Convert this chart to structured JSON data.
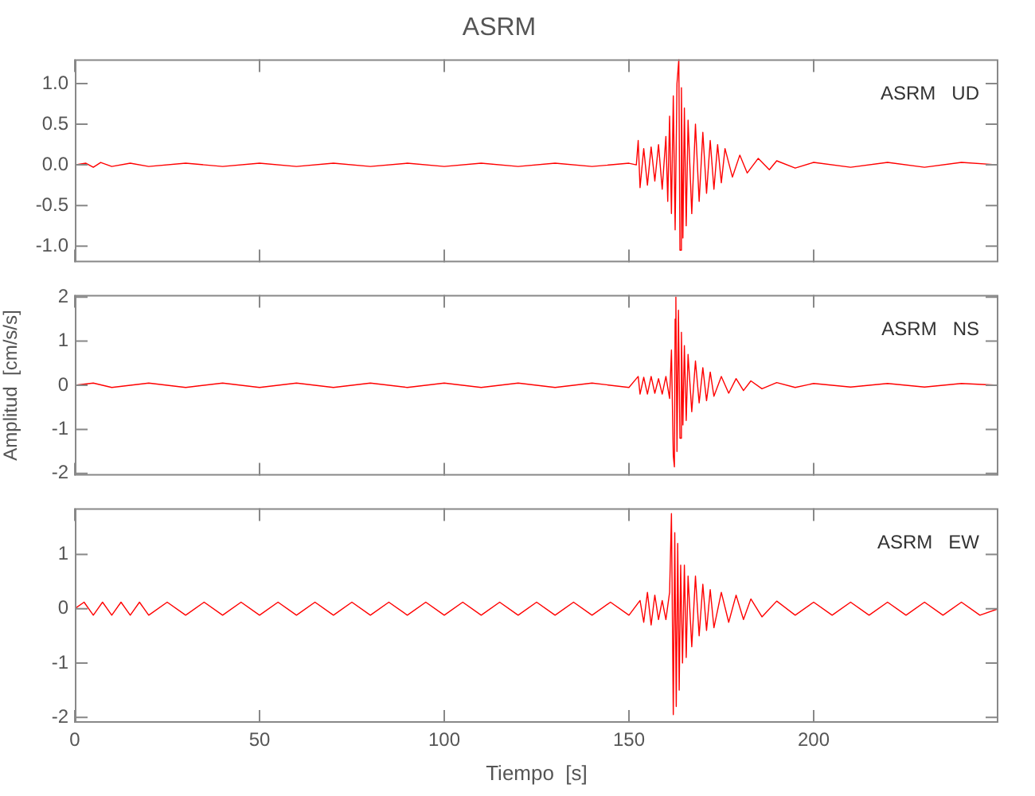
{
  "chart_data": [
    {
      "type": "line",
      "title": "ASRM",
      "annotations": [
        "ASRM   UD"
      ],
      "color": "#ff0000",
      "marker": "none",
      "tick_labels": "y",
      "xlim": [
        0,
        250
      ],
      "xticks": [
        0,
        50,
        100,
        150,
        200
      ],
      "ylim": [
        -1.2,
        1.3
      ],
      "yticks": [
        {
          "value": -1,
          "label": "-1.0"
        },
        {
          "value": -0.5,
          "label": "-0.5"
        },
        {
          "value": 0,
          "label": "0.0"
        },
        {
          "value": 0.5,
          "label": "0.5"
        },
        {
          "value": 1,
          "label": "1.0"
        }
      ],
      "x": [
        0,
        3,
        5,
        7,
        10,
        15,
        20,
        30,
        40,
        50,
        60,
        70,
        80,
        90,
        100,
        110,
        120,
        130,
        140,
        150,
        152,
        152.5,
        153,
        154,
        155,
        156,
        157,
        158,
        159,
        160,
        160.5,
        161,
        161.5,
        162,
        162.5,
        163,
        163.5,
        163.8,
        164.2,
        164.6,
        165,
        165.5,
        166,
        167,
        168,
        169,
        170,
        171,
        172,
        173,
        174,
        175,
        176,
        178,
        180,
        182,
        185,
        188,
        190,
        195,
        200,
        210,
        220,
        230,
        240,
        250
      ],
      "values": [
        0,
        0.02,
        -0.03,
        0.03,
        -0.02,
        0.02,
        -0.02,
        0.02,
        -0.02,
        0.02,
        -0.02,
        0.02,
        -0.02,
        0.02,
        -0.02,
        0.02,
        -0.02,
        0.02,
        -0.02,
        0.02,
        0,
        0.3,
        -0.28,
        0.2,
        -0.25,
        0.22,
        -0.2,
        0.25,
        -0.3,
        0.35,
        -0.45,
        0.6,
        -0.6,
        0.85,
        -0.8,
        1.0,
        1.3,
        -1.05,
        0.95,
        -0.9,
        0.7,
        -0.75,
        0.55,
        -0.6,
        0.5,
        -0.45,
        0.4,
        -0.35,
        0.3,
        -0.3,
        0.25,
        -0.22,
        0.2,
        -0.15,
        0.12,
        -0.1,
        0.08,
        -0.06,
        0.05,
        -0.04,
        0.03,
        -0.03,
        0.03,
        -0.03,
        0.03,
        0
      ]
    },
    {
      "type": "line",
      "ylabel": "Amplitud  [cm/s/s]",
      "annotations": [
        "ASRM   NS"
      ],
      "color": "#ff0000",
      "marker": "none",
      "tick_labels": "y",
      "xlim": [
        0,
        250
      ],
      "xticks": [
        0,
        50,
        100,
        150,
        200
      ],
      "ylim": [
        -2.05,
        2.05
      ],
      "yticks": [
        -2,
        -1,
        0,
        1,
        2
      ],
      "x": [
        0,
        5,
        10,
        20,
        30,
        40,
        50,
        60,
        70,
        80,
        90,
        100,
        110,
        120,
        130,
        140,
        150,
        152.5,
        153,
        154,
        155,
        156,
        157,
        158,
        159,
        160,
        161,
        161.5,
        162,
        162.3,
        162.5,
        162.7,
        163,
        163.4,
        163.8,
        164.2,
        164.6,
        165,
        165.5,
        166,
        167,
        168,
        169,
        170,
        171,
        172,
        173,
        175,
        177,
        179,
        181,
        183,
        186,
        190,
        195,
        200,
        210,
        220,
        230,
        240,
        250
      ],
      "values": [
        0,
        0.05,
        -0.05,
        0.05,
        -0.05,
        0.05,
        -0.05,
        0.05,
        -0.05,
        0.05,
        -0.05,
        0.05,
        -0.05,
        0.05,
        -0.05,
        0.05,
        -0.05,
        0.2,
        -0.2,
        0.18,
        -0.2,
        0.2,
        -0.18,
        0.15,
        -0.2,
        0.2,
        -0.3,
        0.8,
        -1.6,
        -1.85,
        1.5,
        2.0,
        -1.5,
        1.7,
        -1.2,
        1.2,
        -0.9,
        0.9,
        -0.8,
        0.7,
        -0.6,
        0.55,
        -0.4,
        0.4,
        -0.35,
        0.3,
        -0.25,
        0.2,
        -0.18,
        0.15,
        -0.12,
        0.1,
        -0.08,
        0.06,
        -0.05,
        0.04,
        -0.04,
        0.04,
        -0.04,
        0.04,
        0
      ]
    },
    {
      "type": "line",
      "xlabel": "Tiempo  [s]",
      "annotations": [
        "ASRM   EW"
      ],
      "color": "#ff0000",
      "marker": "none",
      "xlim": [
        0,
        250
      ],
      "xticks": [
        0,
        50,
        100,
        150,
        200
      ],
      "ylim": [
        -2.1,
        1.85
      ],
      "yticks": [
        -2,
        -1,
        0,
        1
      ],
      "x": [
        0,
        2.5,
        5,
        7.5,
        10,
        12.5,
        15,
        17.5,
        20,
        25,
        30,
        35,
        40,
        45,
        50,
        55,
        60,
        65,
        70,
        75,
        80,
        85,
        90,
        95,
        100,
        105,
        110,
        115,
        120,
        125,
        130,
        135,
        140,
        145,
        150,
        153,
        154,
        155,
        156,
        157,
        158,
        159,
        160,
        161,
        161.5,
        162,
        162.4,
        162.8,
        163.2,
        163.6,
        164,
        164.5,
        165,
        165.5,
        166,
        167,
        168,
        169,
        170,
        171,
        172,
        173,
        175,
        177,
        179,
        181,
        183,
        186,
        190,
        195,
        200,
        205,
        210,
        215,
        220,
        225,
        230,
        235,
        240,
        245,
        250
      ],
      "values": [
        0,
        0.12,
        -0.12,
        0.12,
        -0.12,
        0.12,
        -0.12,
        0.12,
        -0.12,
        0.12,
        -0.12,
        0.12,
        -0.12,
        0.12,
        -0.12,
        0.12,
        -0.12,
        0.12,
        -0.12,
        0.12,
        -0.12,
        0.12,
        -0.12,
        0.12,
        -0.12,
        0.12,
        -0.12,
        0.12,
        -0.12,
        0.12,
        -0.12,
        0.12,
        -0.12,
        0.12,
        -0.12,
        0.15,
        -0.25,
        0.3,
        -0.3,
        0.25,
        -0.2,
        0.15,
        -0.2,
        0.3,
        1.75,
        -1.95,
        1.4,
        -1.8,
        1.2,
        -1.5,
        0.8,
        -1.0,
        0.8,
        -0.9,
        0.6,
        -0.7,
        0.6,
        -0.5,
        0.45,
        -0.4,
        0.35,
        -0.35,
        0.3,
        -0.25,
        0.25,
        -0.2,
        0.18,
        -0.15,
        0.14,
        -0.12,
        0.12,
        -0.12,
        0.12,
        -0.12,
        0.12,
        -0.12,
        0.12,
        -0.12,
        0.12,
        -0.12,
        0
      ]
    }
  ]
}
